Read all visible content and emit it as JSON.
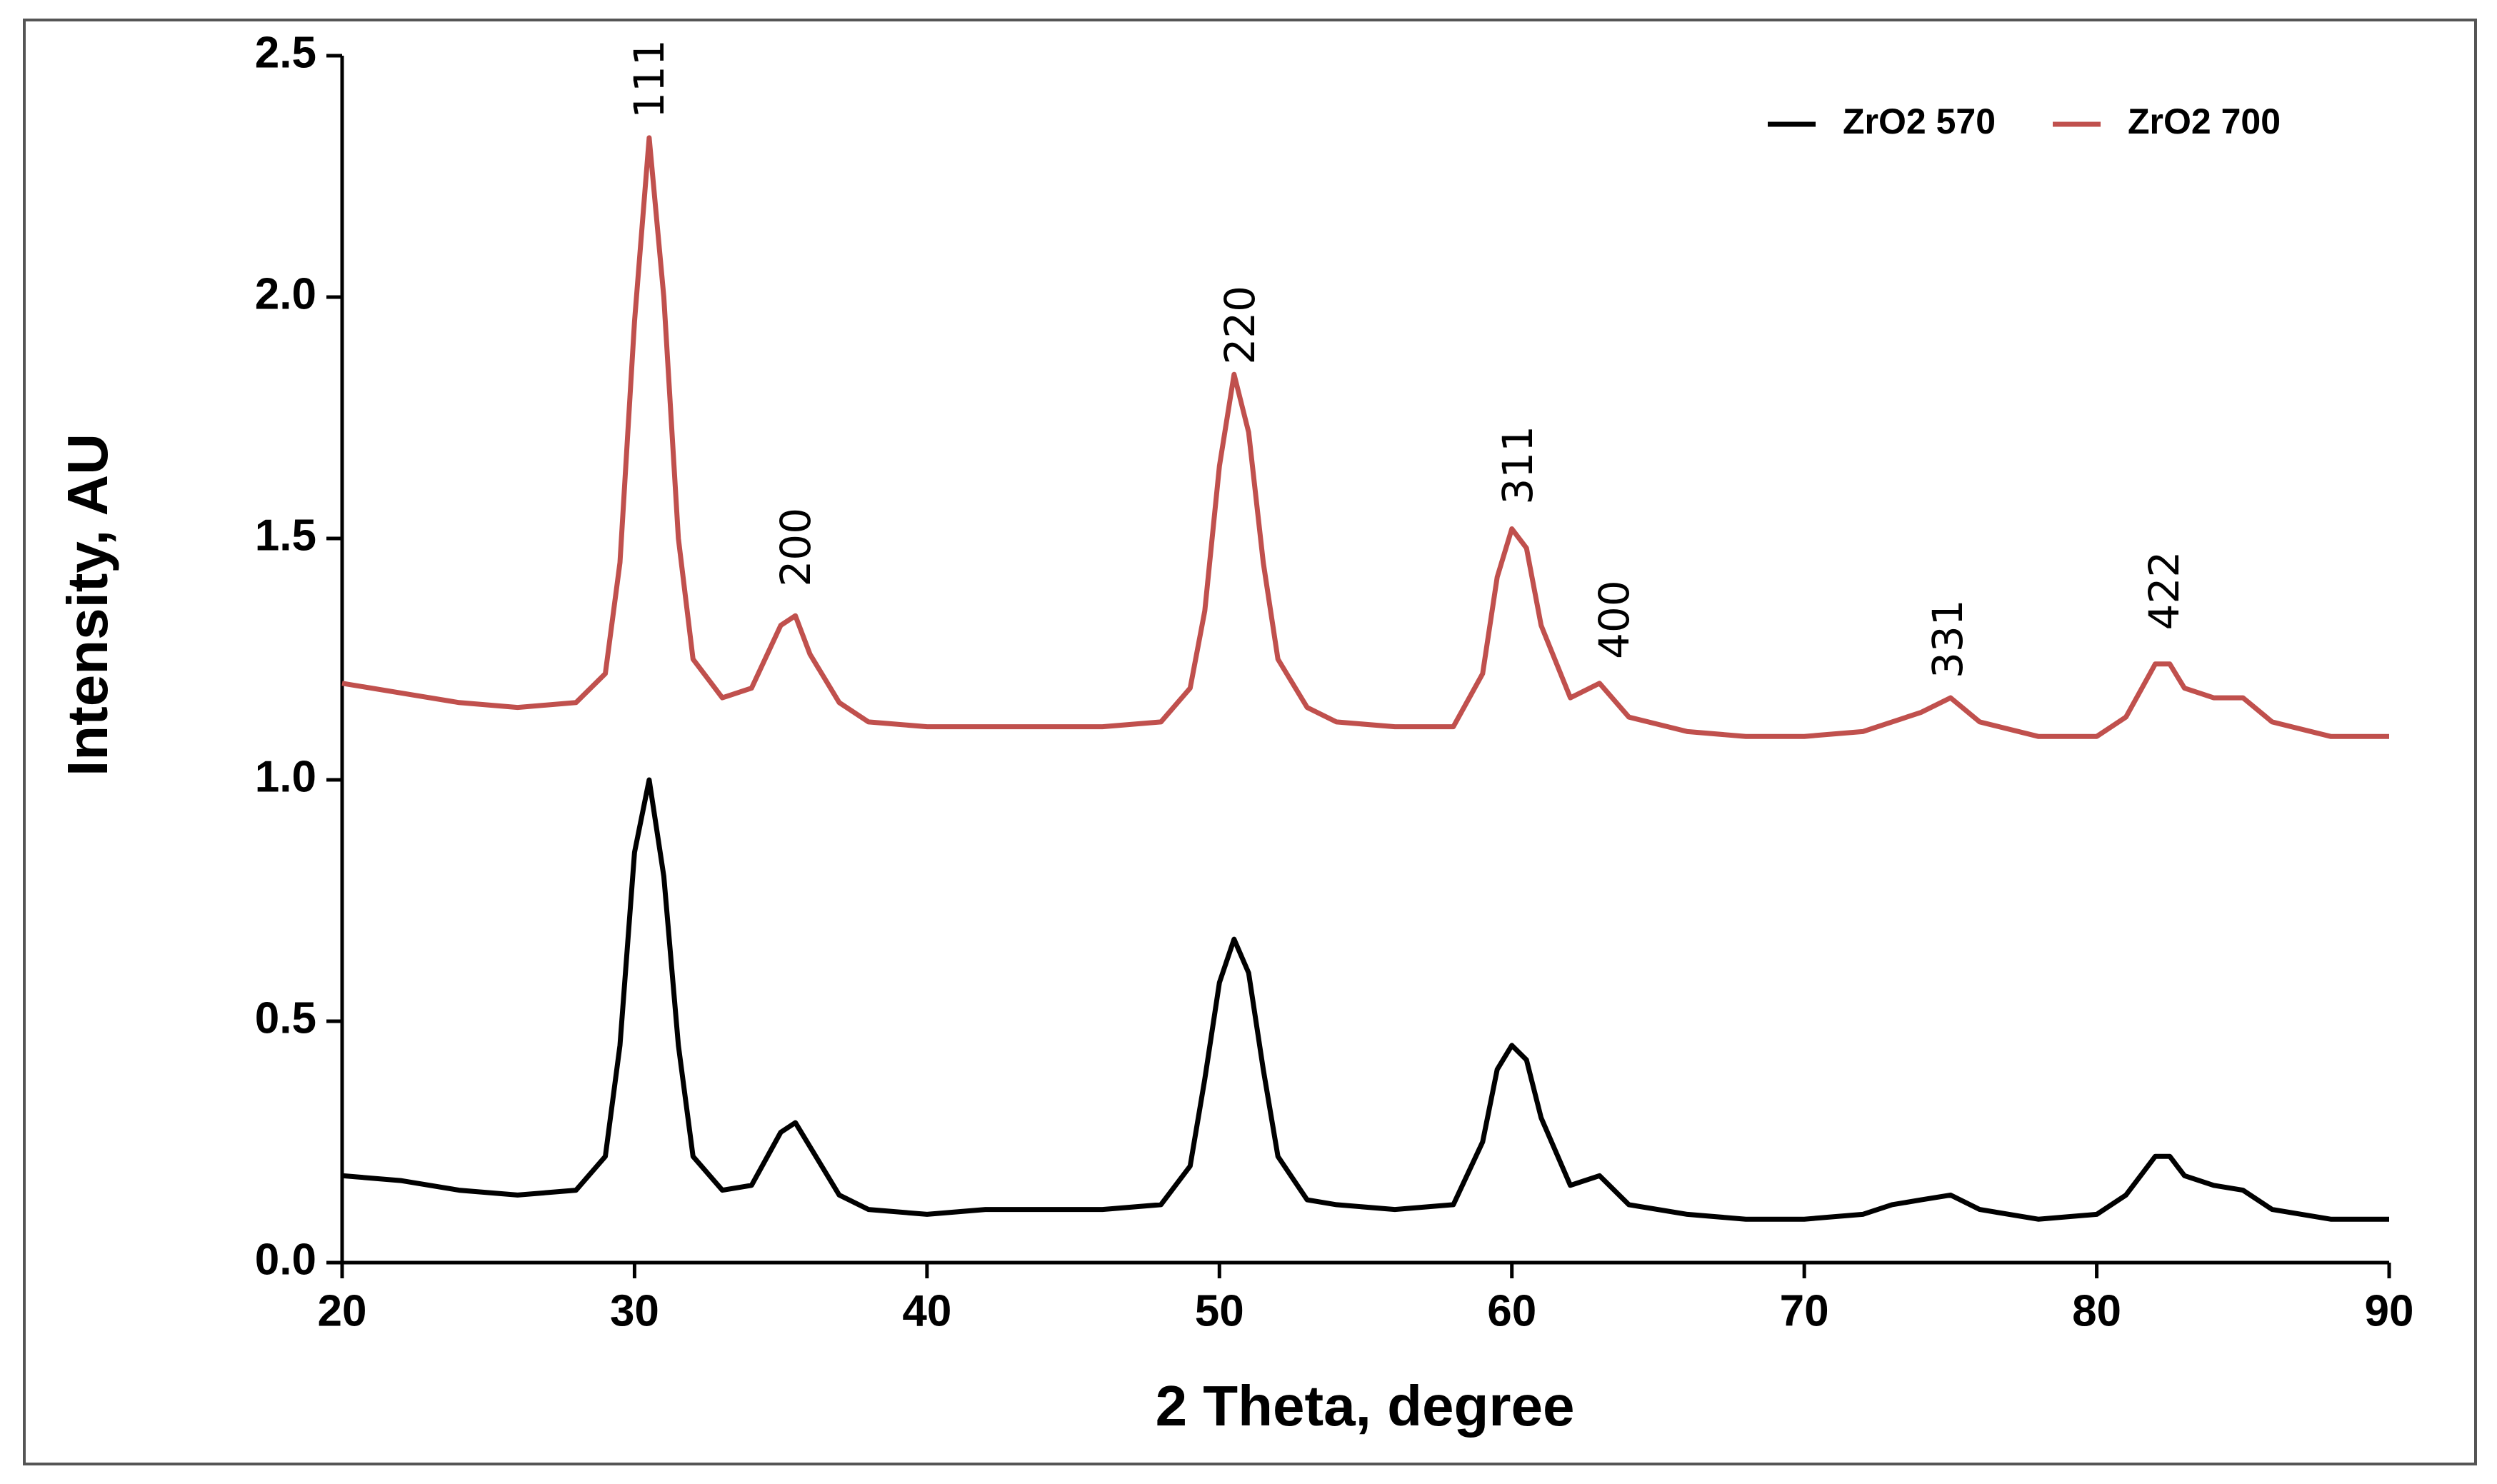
{
  "chart_data": {
    "type": "line",
    "xlabel": "2 Theta, degree",
    "ylabel": "Intensity, AU",
    "xlim": [
      20,
      90
    ],
    "xticks": [
      20,
      30,
      40,
      50,
      60,
      70,
      80,
      90
    ],
    "ylim": [
      0,
      2.5
    ],
    "yticks": [
      {
        "value": 0,
        "label": "0.0"
      },
      0.5,
      {
        "value": 1,
        "label": "1.0"
      },
      1.5,
      {
        "value": 2,
        "label": "2.0"
      },
      2.5
    ],
    "grid": false,
    "legend": "upper right",
    "x": [
      20,
      22,
      24,
      26,
      28,
      29,
      29.5,
      30,
      30.5,
      31,
      31.5,
      32,
      33,
      34,
      35,
      35.5,
      36,
      37,
      38,
      40,
      42,
      44,
      46,
      48,
      49,
      49.5,
      50,
      50.5,
      51,
      51.5,
      52,
      53,
      54,
      56,
      58,
      59,
      59.5,
      60,
      60.5,
      61,
      62,
      63,
      64,
      66,
      68,
      70,
      72,
      73,
      74,
      75,
      76,
      78,
      80,
      81,
      82,
      82.5,
      83,
      84,
      85,
      86,
      88,
      90
    ],
    "series": [
      {
        "name": "ZrO2 570",
        "color": "#000000",
        "values": [
          0.18,
          0.17,
          0.15,
          0.14,
          0.15,
          0.22,
          0.45,
          0.85,
          1.0,
          0.8,
          0.45,
          0.22,
          0.15,
          0.16,
          0.27,
          0.29,
          0.24,
          0.14,
          0.11,
          0.1,
          0.11,
          0.11,
          0.11,
          0.12,
          0.2,
          0.38,
          0.58,
          0.67,
          0.6,
          0.4,
          0.22,
          0.13,
          0.12,
          0.11,
          0.12,
          0.25,
          0.4,
          0.45,
          0.42,
          0.3,
          0.16,
          0.18,
          0.12,
          0.1,
          0.09,
          0.09,
          0.1,
          0.12,
          0.13,
          0.14,
          0.11,
          0.09,
          0.1,
          0.14,
          0.22,
          0.22,
          0.18,
          0.16,
          0.15,
          0.11,
          0.09,
          0.09
        ]
      },
      {
        "name": "ZrO2 700",
        "color": "#c0504d",
        "values": [
          1.2,
          1.18,
          1.16,
          1.15,
          1.16,
          1.22,
          1.45,
          1.95,
          2.33,
          2.0,
          1.5,
          1.25,
          1.17,
          1.19,
          1.32,
          1.34,
          1.26,
          1.16,
          1.12,
          1.11,
          1.11,
          1.11,
          1.11,
          1.12,
          1.19,
          1.35,
          1.65,
          1.84,
          1.72,
          1.45,
          1.25,
          1.15,
          1.12,
          1.11,
          1.11,
          1.22,
          1.42,
          1.52,
          1.48,
          1.32,
          1.17,
          1.2,
          1.13,
          1.1,
          1.09,
          1.09,
          1.1,
          1.12,
          1.14,
          1.17,
          1.12,
          1.09,
          1.09,
          1.13,
          1.24,
          1.24,
          1.19,
          1.17,
          1.17,
          1.12,
          1.09,
          1.09
        ]
      }
    ],
    "annotations": [
      {
        "text": "111",
        "x": 30.6,
        "y": 2.37
      },
      {
        "text": "200",
        "x": 35.6,
        "y": 1.4
      },
      {
        "text": "220",
        "x": 50.8,
        "y": 1.86
      },
      {
        "text": "311",
        "x": 60.3,
        "y": 1.57
      },
      {
        "text": "400",
        "x": 63.6,
        "y": 1.25
      },
      {
        "text": "331",
        "x": 75.0,
        "y": 1.21
      },
      {
        "text": "422",
        "x": 82.4,
        "y": 1.31
      }
    ]
  }
}
